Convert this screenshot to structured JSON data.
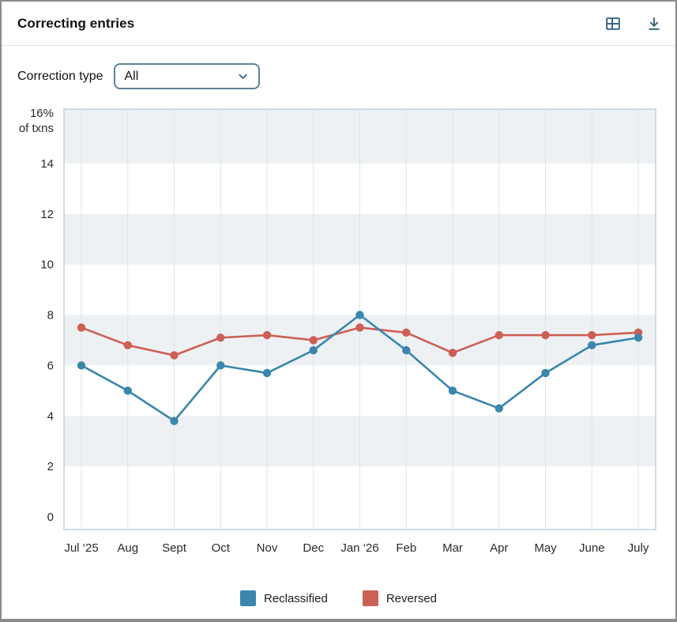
{
  "header": {
    "title": "Correcting entries",
    "icons": [
      "table-icon",
      "download-icon"
    ],
    "icon_color": "#2d5f79"
  },
  "filter": {
    "label": "Correction type",
    "value": "All",
    "chevron_icon": "chevron-down-icon"
  },
  "chart_data": {
    "type": "line",
    "title": "Correcting entries",
    "categories": [
      "Jul ‘25",
      "Aug",
      "Sept",
      "Oct",
      "Nov",
      "Dec",
      "Jan ‘26",
      "Feb",
      "Mar",
      "Apr",
      "May",
      "June",
      "July"
    ],
    "series": [
      {
        "name": "Reclassified",
        "color": "#3a86ad",
        "values": [
          6.0,
          5.0,
          3.8,
          6.0,
          5.7,
          6.6,
          8.0,
          6.6,
          5.0,
          4.3,
          5.7,
          6.8,
          7.1
        ]
      },
      {
        "name": "Reversed",
        "color": "#cd6054",
        "values": [
          7.5,
          6.8,
          6.4,
          7.1,
          7.2,
          7.0,
          7.5,
          7.3,
          6.5,
          7.2,
          7.2,
          7.2,
          7.3
        ]
      }
    ],
    "ylim": [
      0,
      16
    ],
    "yticks": [
      0,
      2,
      4,
      6,
      8,
      10,
      12,
      14,
      16
    ],
    "ytick_labels": [
      "0",
      "2",
      "4",
      "6",
      "8",
      "10",
      "12",
      "14",
      "16%"
    ],
    "y_axis_unit_note": "of txns",
    "grid": "vertical",
    "band_color": "#edf1f4",
    "gridline_color": "#dde5ea",
    "plot_border_color": "#c2d0da",
    "legend_position": "bottom"
  }
}
